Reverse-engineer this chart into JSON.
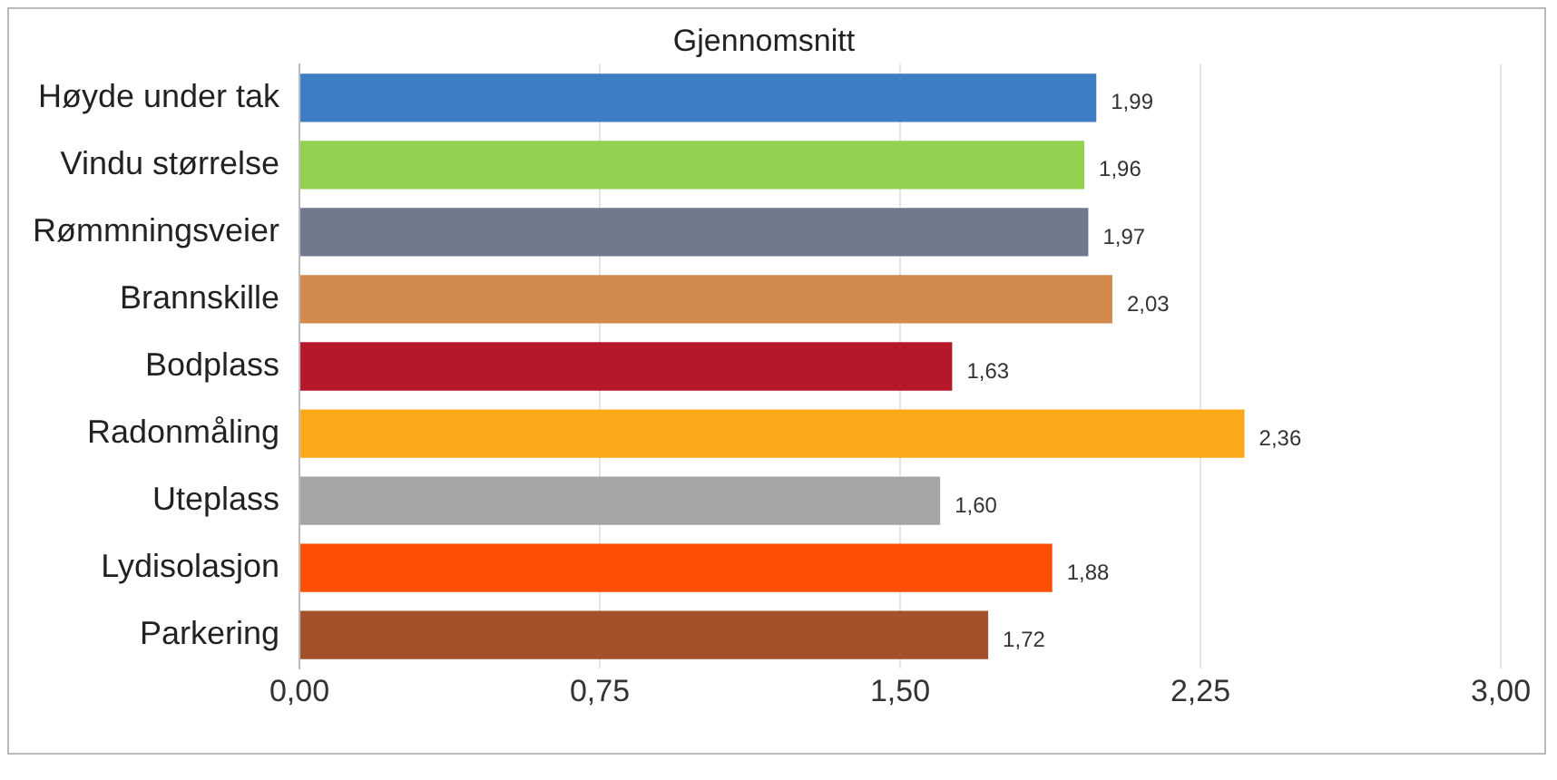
{
  "chart_data": {
    "type": "bar",
    "orientation": "horizontal",
    "title": "Gjennomsnitt",
    "categories": [
      "Høyde under tak",
      "Vindu størrelse",
      "Rømmningsveier",
      "Brannskille",
      "Bodplass",
      "Radonmåling",
      "Uteplass",
      "Lydisolasjon",
      "Parkering"
    ],
    "values": [
      1.99,
      1.96,
      1.97,
      2.03,
      1.63,
      2.36,
      1.6,
      1.88,
      1.72
    ],
    "value_labels": [
      "1,99",
      "1,96",
      "1,97",
      "2,03",
      "1,63",
      "2,36",
      "1,60",
      "1,88",
      "1,72"
    ],
    "colors": [
      "#3d7dc4",
      "#92d050",
      "#6e7a8c",
      "#d2894c",
      "#b5182b",
      "#fba919",
      "#a5a5a5",
      "#fd4f06",
      "#a3512b"
    ],
    "xlim": [
      0,
      3
    ],
    "xticks": [
      {
        "value": 0,
        "label": "0,00"
      },
      {
        "value": 0.75,
        "label": "0,75"
      },
      {
        "value": 1.5,
        "label": "1,50"
      },
      {
        "value": 2.25,
        "label": "2,25"
      },
      {
        "value": 3,
        "label": "3,00"
      }
    ],
    "grid": "x"
  }
}
